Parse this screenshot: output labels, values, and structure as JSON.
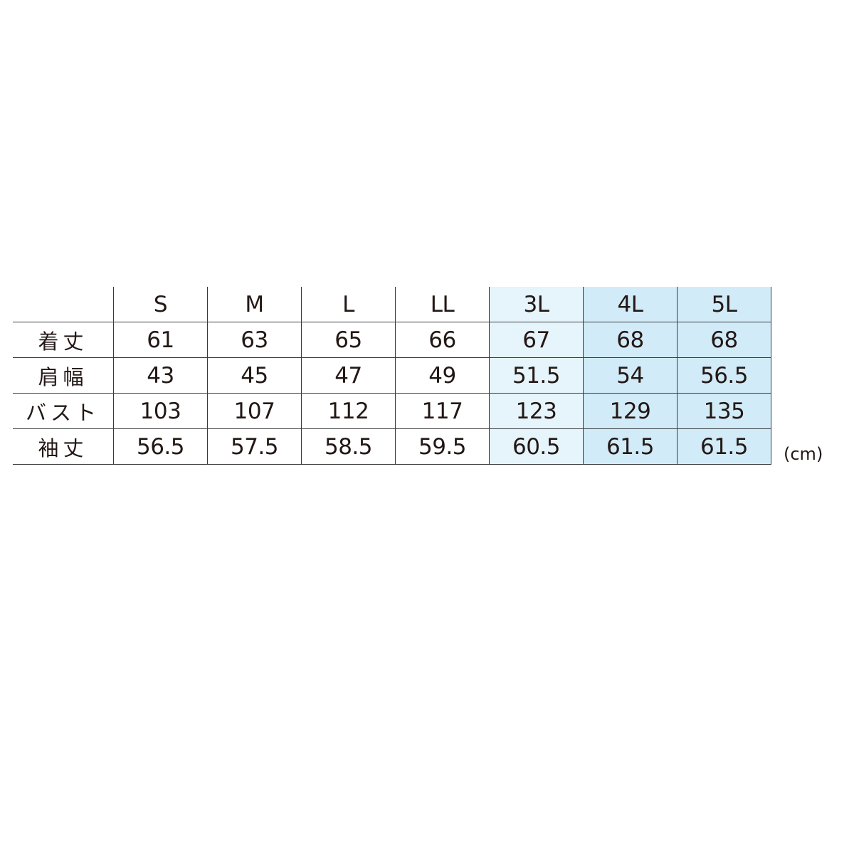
{
  "table": {
    "columns": [
      "S",
      "M",
      "L",
      "LL",
      "3L",
      "4L",
      "5L"
    ],
    "rows": [
      {
        "label": "着丈",
        "values": [
          "61",
          "63",
          "65",
          "66",
          "67",
          "68",
          "68"
        ]
      },
      {
        "label": "肩幅",
        "values": [
          "43",
          "45",
          "47",
          "49",
          "51.5",
          "54",
          "56.5"
        ]
      },
      {
        "label": "バスト",
        "values": [
          "103",
          "107",
          "112",
          "117",
          "123",
          "129",
          "135"
        ]
      },
      {
        "label": "袖丈",
        "values": [
          "56.5",
          "57.5",
          "58.5",
          "59.5",
          "60.5",
          "61.5",
          "61.5"
        ]
      }
    ],
    "highlight_colors": {
      "3L": "#e6f4fb",
      "4L": "#d2ebf8",
      "5L": "#d2ebf8"
    }
  },
  "unit": "(cm)"
}
